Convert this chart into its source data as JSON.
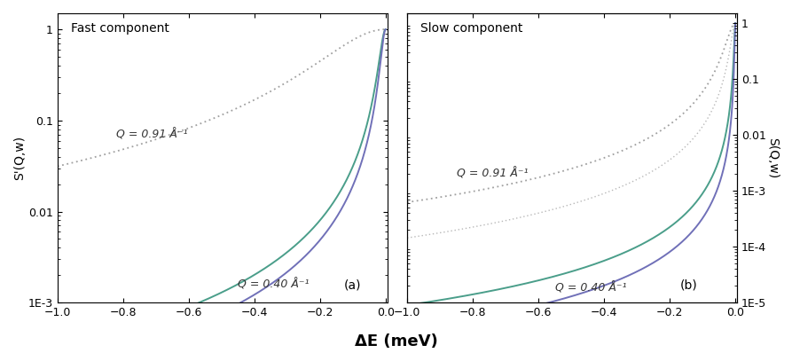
{
  "panel_a": {
    "title": "Fast component",
    "label": "(a)",
    "xlim": [
      -1.0,
      0.005
    ],
    "ylim": [
      0.001,
      1.5
    ],
    "yticks": [
      0.001,
      0.01,
      0.1,
      1
    ],
    "yticklabels": [
      "1E-3",
      "0.01",
      "0.1",
      "1"
    ],
    "ylabel_left": "S'(Q,w)",
    "q_high_label": "Q = 0.91 Å⁻¹",
    "q_low_label": "Q = 0.40 Å⁻¹",
    "gamma_high_q": 0.18,
    "gamma_low_q_green": 0.018,
    "gamma_low_q_blue": 0.014
  },
  "panel_b": {
    "title": "Slow component",
    "label": "(b)",
    "xlim": [
      -1.0,
      0.005
    ],
    "ylim": [
      1e-05,
      1.5
    ],
    "yticks": [
      1e-05,
      0.0001,
      0.001,
      0.01,
      0.1,
      1
    ],
    "yticklabels": [
      "1E-5",
      "1E-4",
      "1E-3",
      "0.01",
      "0.1",
      "1"
    ],
    "ylabel_right": "S(Q,w)",
    "q_high_label": "Q = 0.91 Å⁻¹",
    "q_low_label": "Q = 0.40 Å⁻¹",
    "gamma_high_q_dot1": 0.025,
    "gamma_high_q_dot2": 0.012,
    "gamma_low_q_green": 0.003,
    "gamma_low_q_blue": 0.0018
  },
  "xlabel": "ΔE (meV)",
  "color_dotted": "#a0a0a0",
  "color_dotted2": "#b8b8b8",
  "color_green": "#4a9e8a",
  "color_blue": "#7070b8",
  "figsize": [
    8.93,
    3.98
  ]
}
